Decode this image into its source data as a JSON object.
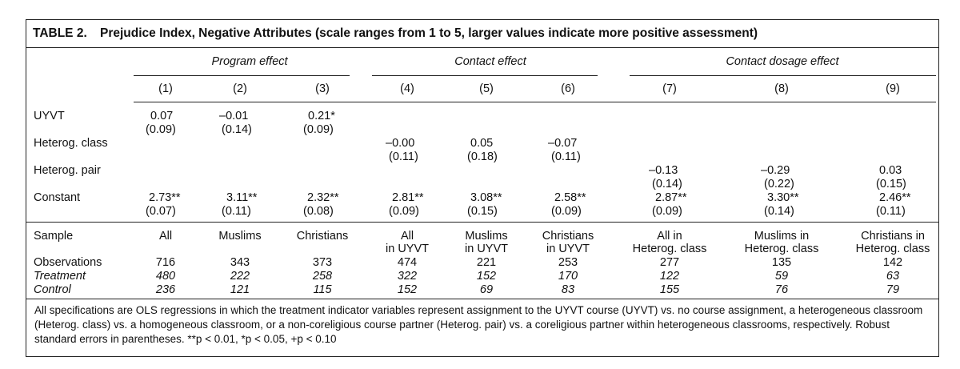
{
  "table": {
    "label": "TABLE 2.",
    "title": "Prejudice Index, Negative Attributes (scale ranges from 1 to 5, larger values indicate more positive assessment)",
    "groups": [
      "Program effect",
      "Contact effect",
      "Contact dosage effect"
    ],
    "columns": [
      "(1)",
      "(2)",
      "(3)",
      "(4)",
      "(5)",
      "(6)",
      "(7)",
      "(8)",
      "(9)"
    ],
    "rows": {
      "uyvt": {
        "label": "UYVT",
        "coef": [
          "0.07",
          "–0.01",
          "0.21*"
        ],
        "se": [
          "(0.09)",
          "(0.14)",
          "(0.09)"
        ]
      },
      "class": {
        "label": "Heterog. class",
        "coef": [
          "–0.00",
          "0.05",
          "–0.07"
        ],
        "se": [
          "(0.11)",
          "(0.18)",
          "(0.11)"
        ]
      },
      "pair": {
        "label": "Heterog. pair",
        "coef": [
          "–0.13",
          "–0.29",
          "0.03"
        ],
        "se": [
          "(0.14)",
          "(0.22)",
          "(0.15)"
        ]
      },
      "constant": {
        "label": "Constant",
        "coef": [
          "2.73**",
          "3.11**",
          "2.32**",
          "2.81**",
          "3.08**",
          "2.58**",
          "2.87**",
          "3.30**",
          "2.46**"
        ],
        "se": [
          "(0.07)",
          "(0.11)",
          "(0.08)",
          "(0.09)",
          "(0.15)",
          "(0.09)",
          "(0.09)",
          "(0.14)",
          "(0.11)"
        ]
      }
    },
    "sample": {
      "label": "Sample",
      "line1": [
        "All",
        "Muslims",
        "Christians",
        "All",
        "Muslims",
        "Christians",
        "All in",
        "Muslims in",
        "Christians in"
      ],
      "line2": [
        "",
        "",
        "",
        "in UYVT",
        "in UYVT",
        "in UYVT",
        "Heterog. class",
        "Heterog. class",
        "Heterog. class"
      ]
    },
    "observations": {
      "label": "Observations",
      "values": [
        "716",
        "343",
        "373",
        "474",
        "221",
        "253",
        "277",
        "135",
        "142"
      ]
    },
    "treatment": {
      "label": "Treatment",
      "values": [
        "480",
        "222",
        "258",
        "322",
        "152",
        "170",
        "122",
        "59",
        "63"
      ]
    },
    "control": {
      "label": "Control",
      "values": [
        "236",
        "121",
        "115",
        "152",
        "69",
        "83",
        "155",
        "76",
        "79"
      ]
    },
    "note": "All specifications are OLS regressions in which the treatment indicator variables represent assignment to the UYVT course (UYVT) vs. no course assignment, a heterogeneous classroom (Heterog. class) vs. a homogeneous classroom, or a non-coreligious course partner (Heterog. pair) vs. a coreligious partner within heterogeneous classrooms, respectively. Robust standard errors in parentheses. **p < 0.01, *p < 0.05, +p < 0.10"
  }
}
